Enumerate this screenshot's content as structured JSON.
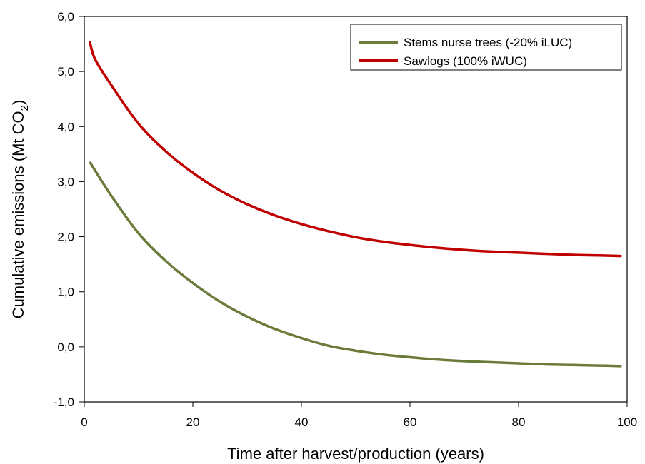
{
  "chart_data": {
    "type": "line",
    "xlabel": "Time after harvest/production (years)",
    "ylabel_main": "Cumulative emissions (Mt CO",
    "ylabel_sub": "2",
    "ylabel_end": ")",
    "xlim": [
      0,
      100
    ],
    "ylim": [
      -1.0,
      6.0
    ],
    "x_ticks": [
      0,
      20,
      40,
      60,
      80,
      100
    ],
    "x_tick_labels": [
      "0",
      "20",
      "40",
      "60",
      "80",
      "100"
    ],
    "y_ticks": [
      -1.0,
      0.0,
      1.0,
      2.0,
      3.0,
      4.0,
      5.0,
      6.0
    ],
    "y_tick_labels": [
      "-1,0",
      "0,0",
      "1,0",
      "2,0",
      "3,0",
      "4,0",
      "5,0",
      "6,0"
    ],
    "grid": false,
    "legend_position": "top-right",
    "x": [
      1,
      2,
      5,
      10,
      15,
      20,
      25,
      30,
      35,
      40,
      45,
      50,
      55,
      60,
      65,
      70,
      75,
      80,
      85,
      90,
      95,
      99
    ],
    "series": [
      {
        "name": "Stems nurse trees (-20% iLUC)",
        "color": "#6b7b3a",
        "values": [
          3.36,
          3.2,
          2.74,
          2.06,
          1.56,
          1.16,
          0.82,
          0.55,
          0.33,
          0.16,
          0.02,
          -0.07,
          -0.14,
          -0.19,
          -0.23,
          -0.26,
          -0.28,
          -0.3,
          -0.32,
          -0.33,
          -0.34,
          -0.35
        ]
      },
      {
        "name": "Sawlogs (100% iWUC)",
        "color": "#c00000",
        "values": [
          5.55,
          5.22,
          4.75,
          4.05,
          3.55,
          3.16,
          2.84,
          2.59,
          2.39,
          2.23,
          2.1,
          1.99,
          1.91,
          1.85,
          1.8,
          1.76,
          1.73,
          1.71,
          1.69,
          1.67,
          1.66,
          1.65
        ]
      }
    ]
  }
}
